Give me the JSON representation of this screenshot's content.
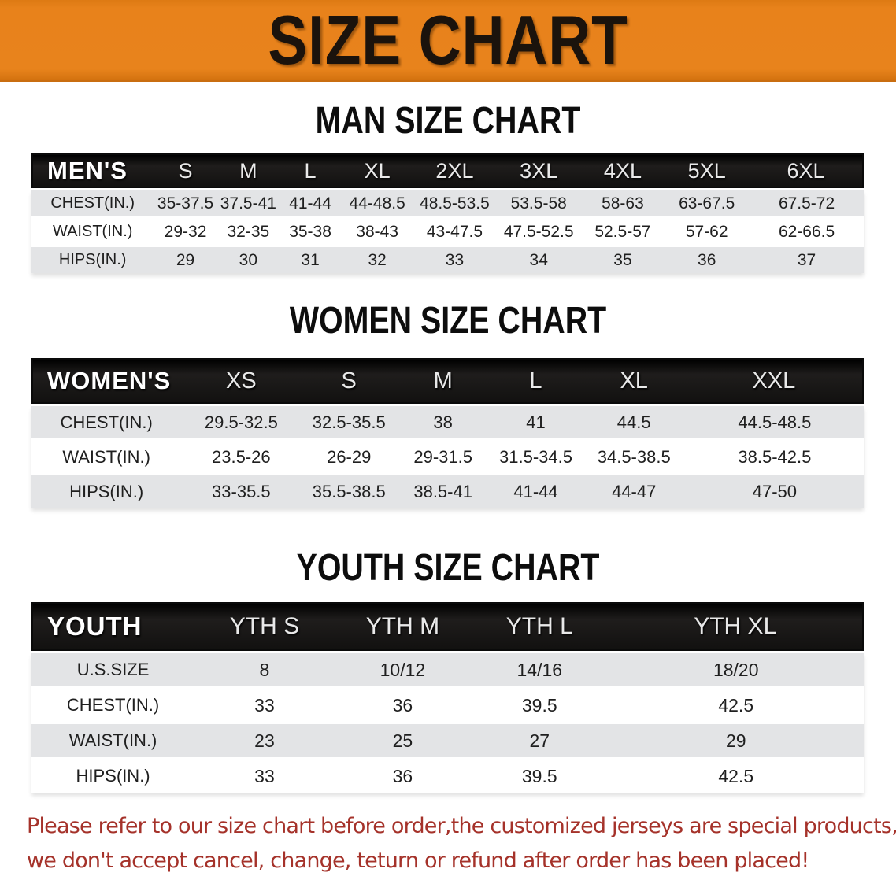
{
  "banner": {
    "title": "SIZE CHART",
    "background_color": "#E8821B",
    "text_color": "#1B130C"
  },
  "sections": [
    {
      "id": "men",
      "heading": "MAN SIZE CHART",
      "header_label": "MEN'S",
      "columns": [
        "S",
        "M",
        "L",
        "XL",
        "2XL",
        "3XL",
        "4XL",
        "5XL",
        "6XL"
      ],
      "rows": [
        {
          "label": "CHEST(IN.)",
          "values": [
            "35-37.5",
            "37.5-41",
            "41-44",
            "44-48.5",
            "48.5-53.5",
            "53.5-58",
            "58-63",
            "63-67.5",
            "67.5-72"
          ]
        },
        {
          "label": "WAIST(IN.)",
          "values": [
            "29-32",
            "32-35",
            "35-38",
            "38-43",
            "43-47.5",
            "47.5-52.5",
            "52.5-57",
            "57-62",
            "62-66.5"
          ]
        },
        {
          "label": "HIPS(IN.)",
          "values": [
            "29",
            "30",
            "31",
            "32",
            "33",
            "34",
            "35",
            "36",
            "37"
          ]
        }
      ]
    },
    {
      "id": "women",
      "heading": "WOMEN SIZE CHART",
      "header_label": "WOMEN'S",
      "columns": [
        "XS",
        "S",
        "M",
        "L",
        "XL",
        "XXL"
      ],
      "rows": [
        {
          "label": "CHEST(IN.)",
          "values": [
            "29.5-32.5",
            "32.5-35.5",
            "38",
            "41",
            "44.5",
            "44.5-48.5"
          ]
        },
        {
          "label": "WAIST(IN.)",
          "values": [
            "23.5-26",
            "26-29",
            "29-31.5",
            "31.5-34.5",
            "34.5-38.5",
            "38.5-42.5"
          ]
        },
        {
          "label": "HIPS(IN.)",
          "values": [
            "33-35.5",
            "35.5-38.5",
            "38.5-41",
            "41-44",
            "44-47",
            "47-50"
          ]
        }
      ]
    },
    {
      "id": "youth",
      "heading": "YOUTH SIZE CHART",
      "header_label": "YOUTH",
      "columns": [
        "YTH S",
        "YTH M",
        "YTH L",
        "YTH XL"
      ],
      "rows": [
        {
          "label": "U.S.SIZE",
          "values": [
            "8",
            "10/12",
            "14/16",
            "18/20"
          ]
        },
        {
          "label": "CHEST(IN.)",
          "values": [
            "33",
            "36",
            "39.5",
            "42.5"
          ]
        },
        {
          "label": "WAIST(IN.)",
          "values": [
            "23",
            "25",
            "27",
            "29"
          ]
        },
        {
          "label": "HIPS(IN.)",
          "values": [
            "33",
            "36",
            "39.5",
            "42.5"
          ]
        }
      ]
    }
  ],
  "disclaimer": {
    "line1": "Please refer to our size chart before order,the customized jerseys are special products,",
    "line2": "we don't accept cancel, change, teturn or refund after order has been placed!",
    "text_color": "#A5322A"
  },
  "table_colors": {
    "header_background": "#161514",
    "header_text": "#FFFFFF",
    "row_shade": "#E3E4E6",
    "row_plain": "#FFFFFF"
  }
}
